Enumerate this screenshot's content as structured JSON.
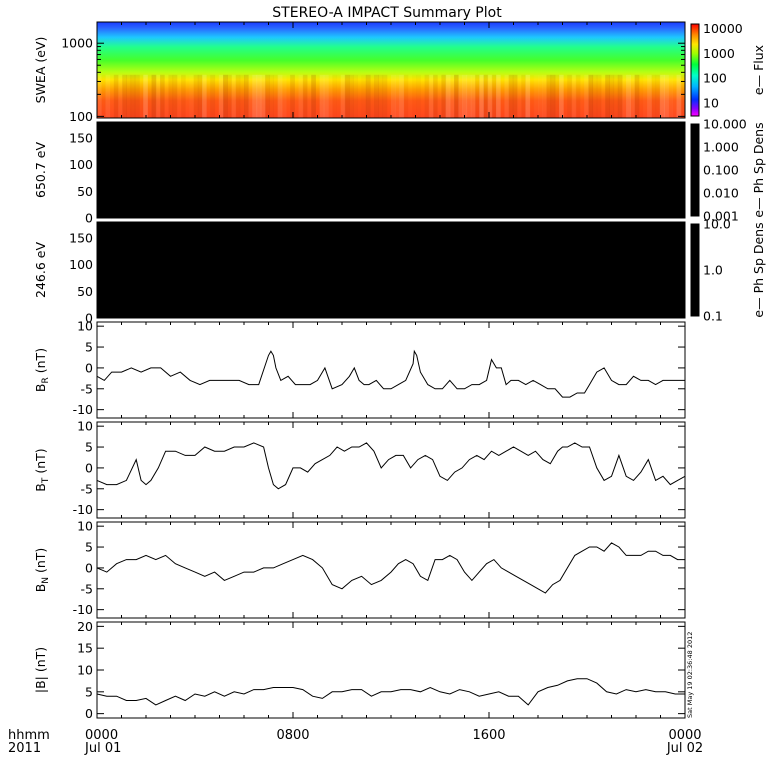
{
  "title": "STEREO-A IMPACT Summary Plot",
  "stamp": "Sat May 19 02:36:48 2012",
  "time_axis": {
    "label_line1": "hhmm",
    "label_line2": "2011",
    "ticks": [
      {
        "hour": 0,
        "line1": "0000",
        "line2": "Jul 01"
      },
      {
        "hour": 8,
        "line1": "0800",
        "line2": ""
      },
      {
        "hour": 16,
        "line1": "1600",
        "line2": ""
      },
      {
        "hour": 24,
        "line1": "0000",
        "line2": "Jul 02"
      }
    ],
    "range_hours": [
      0,
      24
    ]
  },
  "chart_data": [
    {
      "type": "heatmap",
      "ylabel": "SWEA (eV)",
      "ylim": [
        95,
        1950
      ],
      "yscale": "log",
      "yticks": [
        100,
        1000
      ],
      "ytick_labels": [
        "100",
        "1000"
      ],
      "colorbar": {
        "label": "e— Flux",
        "scale": "log",
        "range": [
          3,
          15000
        ],
        "ticks": [
          10,
          100,
          1000,
          10000
        ],
        "tick_labels": [
          "10",
          "100",
          "1000",
          "10000"
        ]
      }
    },
    {
      "type": "heatmap",
      "ylabel": "650.7 eV",
      "ylim": [
        0,
        180
      ],
      "yticks": [
        0,
        50,
        100,
        150
      ],
      "ytick_labels": [
        "0",
        "50",
        "100",
        "150"
      ],
      "fill": "#000000",
      "colorbar": {
        "label": "e— Ph Sp Dens",
        "scale": "log",
        "range": [
          0.001,
          10
        ],
        "ticks": [
          0.001,
          0.01,
          0.1,
          1,
          10
        ],
        "tick_labels": [
          "0.001",
          "0.010",
          "0.100",
          "1.000",
          "10.000"
        ]
      }
    },
    {
      "type": "heatmap",
      "ylabel": "246.6 eV",
      "ylim": [
        0,
        180
      ],
      "yticks": [
        0,
        50,
        100,
        150
      ],
      "ytick_labels": [
        "0",
        "50",
        "100",
        "150"
      ],
      "fill": "#000000",
      "colorbar": {
        "label": "e— Ph Sp Dens",
        "scale": "log",
        "range": [
          0.1,
          10
        ],
        "ticks": [
          0.1,
          1,
          10
        ],
        "tick_labels": [
          "0.1",
          "1.0",
          "10.0"
        ]
      }
    },
    {
      "type": "line",
      "ylabel_main": "B",
      "ylabel_sub": "R",
      "ylabel_unit": " (nT)",
      "ylim": [
        -12,
        11
      ],
      "yticks": [
        -10,
        -5,
        0,
        5,
        10
      ],
      "ytick_labels": [
        "-10",
        "-5",
        "0",
        "5",
        "10"
      ],
      "x": [
        0,
        0.3,
        0.6,
        1,
        1.4,
        1.8,
        2.2,
        2.6,
        3,
        3.4,
        3.8,
        4.2,
        4.6,
        5,
        5.4,
        5.8,
        6.2,
        6.6,
        7,
        7.1,
        7.2,
        7.3,
        7.5,
        7.8,
        8.1,
        8.4,
        8.7,
        9,
        9.3,
        9.6,
        10,
        10.3,
        10.5,
        10.7,
        10.9,
        11.1,
        11.4,
        11.7,
        12,
        12.3,
        12.6,
        12.9,
        12.95,
        13.05,
        13.2,
        13.5,
        13.8,
        14.1,
        14.4,
        14.7,
        15,
        15.3,
        15.6,
        15.9,
        16.1,
        16.3,
        16.5,
        16.7,
        16.9,
        17.2,
        17.5,
        17.8,
        18.1,
        18.4,
        18.7,
        19,
        19.3,
        19.6,
        19.9,
        20.1,
        20.4,
        20.7,
        21,
        21.3,
        21.6,
        21.9,
        22.2,
        22.5,
        22.8,
        23.1,
        23.4,
        23.7,
        24
      ],
      "values": [
        -2,
        -3,
        -1,
        -1,
        0,
        -1,
        0,
        0,
        -2,
        -1,
        -3,
        -4,
        -3,
        -3,
        -3,
        -3,
        -4,
        -4,
        3,
        4,
        3,
        0,
        -3,
        -2,
        -4,
        -4,
        -4,
        -3,
        0,
        -5,
        -4,
        -2,
        0,
        -3,
        -4,
        -4,
        -3,
        -5,
        -5,
        -4,
        -3,
        1,
        4,
        3,
        -1,
        -4,
        -5,
        -5,
        -3,
        -5,
        -5,
        -4,
        -4,
        -3,
        2,
        0,
        0,
        -4,
        -3,
        -3,
        -4,
        -3,
        -4,
        -5,
        -5,
        -7,
        -7,
        -6,
        -6,
        -4,
        -1,
        0,
        -3,
        -4,
        -4,
        -2,
        -3,
        -3,
        -4,
        -3,
        -3,
        -3,
        -3
      ]
    },
    {
      "type": "line",
      "ylabel_main": "B",
      "ylabel_sub": "T",
      "ylabel_unit": " (nT)",
      "ylim": [
        -12,
        11
      ],
      "yticks": [
        -10,
        -5,
        0,
        5,
        10
      ],
      "ytick_labels": [
        "-10",
        "-5",
        "0",
        "5",
        "10"
      ],
      "x": [
        0,
        0.4,
        0.8,
        1.2,
        1.6,
        1.8,
        2,
        2.2,
        2.5,
        2.8,
        3.2,
        3.6,
        4,
        4.4,
        4.8,
        5.2,
        5.6,
        6,
        6.4,
        6.8,
        7,
        7.2,
        7.4,
        7.7,
        8,
        8.3,
        8.6,
        8.9,
        9.2,
        9.5,
        9.8,
        10.1,
        10.4,
        10.7,
        11,
        11.3,
        11.6,
        11.9,
        12.2,
        12.5,
        12.8,
        13.1,
        13.4,
        13.7,
        14,
        14.3,
        14.6,
        14.9,
        15.2,
        15.5,
        15.8,
        16.1,
        16.4,
        16.7,
        17,
        17.3,
        17.6,
        17.9,
        18.2,
        18.5,
        18.8,
        19,
        19.2,
        19.5,
        19.8,
        20.1,
        20.4,
        20.7,
        21,
        21.3,
        21.6,
        21.9,
        22.2,
        22.5,
        22.8,
        23.1,
        23.4,
        23.7,
        24
      ],
      "values": [
        -3,
        -4,
        -4,
        -3,
        2,
        -3,
        -4,
        -3,
        0,
        4,
        4,
        3,
        3,
        5,
        4,
        4,
        5,
        5,
        6,
        5,
        0,
        -4,
        -5,
        -4,
        0,
        0,
        -1,
        1,
        2,
        3,
        5,
        4,
        5,
        5,
        6,
        4,
        0,
        2,
        3,
        3,
        0,
        2,
        3,
        2,
        -2,
        -3,
        -1,
        0,
        2,
        3,
        2,
        4,
        3,
        4,
        5,
        4,
        3,
        4,
        2,
        1,
        4,
        5,
        5,
        6,
        5,
        5,
        0,
        -3,
        -2,
        3,
        -2,
        -3,
        -1,
        2,
        -3,
        -2,
        -4,
        -3,
        -2
      ]
    },
    {
      "type": "line",
      "ylabel_main": "B",
      "ylabel_sub": "N",
      "ylabel_unit": " (nT)",
      "ylim": [
        -12,
        11
      ],
      "yticks": [
        -10,
        -5,
        0,
        5,
        10
      ],
      "ytick_labels": [
        "-10",
        "-5",
        "0",
        "5",
        "10"
      ],
      "x": [
        0,
        0.4,
        0.8,
        1.2,
        1.6,
        2,
        2.4,
        2.8,
        3.2,
        3.6,
        4,
        4.4,
        4.8,
        5.2,
        5.6,
        6,
        6.4,
        6.8,
        7.2,
        7.6,
        8,
        8.4,
        8.8,
        9.2,
        9.6,
        10,
        10.4,
        10.8,
        11.2,
        11.6,
        12,
        12.3,
        12.6,
        12.9,
        13.2,
        13.5,
        13.8,
        14.1,
        14.4,
        14.7,
        15,
        15.3,
        15.6,
        15.9,
        16.2,
        16.5,
        16.8,
        17.1,
        17.4,
        17.7,
        18,
        18.3,
        18.6,
        18.9,
        19.2,
        19.5,
        19.8,
        20.1,
        20.4,
        20.7,
        21,
        21.3,
        21.6,
        21.9,
        22.2,
        22.5,
        22.8,
        23.1,
        23.4,
        23.7,
        24
      ],
      "values": [
        0,
        -1,
        1,
        2,
        2,
        3,
        2,
        3,
        1,
        0,
        -1,
        -2,
        -1,
        -3,
        -2,
        -1,
        -1,
        0,
        0,
        1,
        2,
        3,
        2,
        0,
        -4,
        -5,
        -3,
        -2,
        -4,
        -3,
        -1,
        1,
        2,
        1,
        -2,
        -3,
        2,
        2,
        3,
        2,
        -1,
        -3,
        -1,
        1,
        2,
        0,
        -1,
        -2,
        -3,
        -4,
        -5,
        -6,
        -4,
        -3,
        0,
        3,
        4,
        5,
        5,
        4,
        6,
        5,
        3,
        3,
        3,
        4,
        4,
        3,
        3,
        2,
        2
      ]
    },
    {
      "type": "line",
      "ylabel_main": "|B|",
      "ylabel_sub": "",
      "ylabel_unit": " (nT)",
      "ylim": [
        -1,
        21
      ],
      "yticks": [
        0,
        5,
        10,
        15,
        20
      ],
      "ytick_labels": [
        "0",
        "5",
        "10",
        "15",
        "20"
      ],
      "x": [
        0,
        0.4,
        0.8,
        1.2,
        1.6,
        2,
        2.4,
        2.8,
        3.2,
        3.6,
        4,
        4.4,
        4.8,
        5.2,
        5.6,
        6,
        6.4,
        6.8,
        7.2,
        7.6,
        8,
        8.4,
        8.8,
        9.2,
        9.6,
        10,
        10.4,
        10.8,
        11.2,
        11.6,
        12,
        12.4,
        12.8,
        13.2,
        13.6,
        14,
        14.4,
        14.8,
        15.2,
        15.6,
        16,
        16.4,
        16.8,
        17.2,
        17.6,
        18,
        18.4,
        18.8,
        19.2,
        19.6,
        20,
        20.4,
        20.8,
        21.2,
        21.6,
        22,
        22.4,
        22.8,
        23.2,
        23.6,
        24
      ],
      "values": [
        4.5,
        4,
        4,
        3,
        3,
        3.5,
        2,
        3,
        4,
        3,
        4.5,
        4,
        5,
        4,
        5,
        4.5,
        5.5,
        5.5,
        6,
        6,
        6,
        5.5,
        4,
        3.5,
        5,
        5,
        5.5,
        5.5,
        4,
        5,
        5,
        5.5,
        5.5,
        5,
        6,
        5,
        4.5,
        5.5,
        5,
        4,
        4.5,
        5,
        4,
        4,
        2,
        5,
        6,
        6.5,
        7.5,
        8,
        8,
        7,
        5,
        4.5,
        5.5,
        5,
        5.5,
        5,
        5,
        4.5,
        4.5
      ]
    }
  ]
}
